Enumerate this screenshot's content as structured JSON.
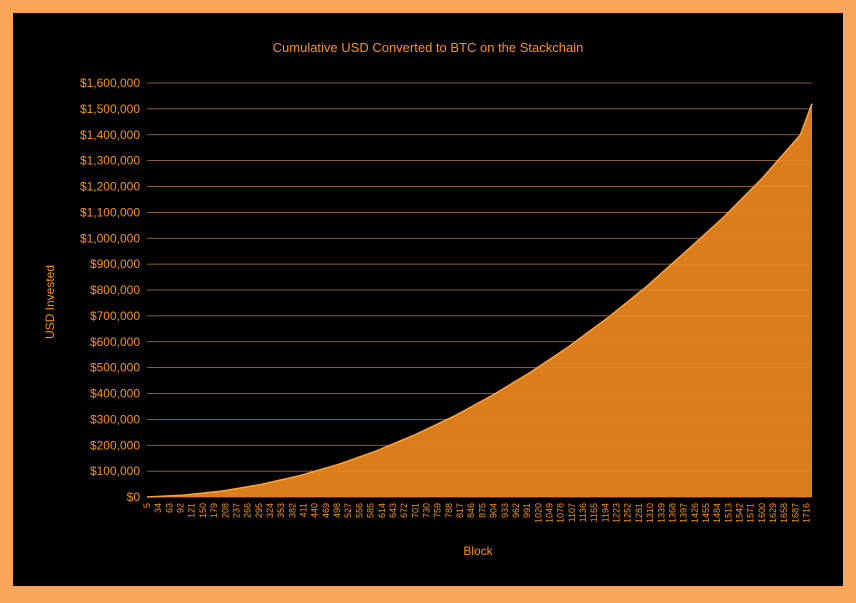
{
  "colors": {
    "page_border": "#f9a65a",
    "background": "#000000",
    "accent": "#f7931a",
    "area_fill": "#e8841f",
    "area_line": "#f7a03a",
    "text": "#f7931a",
    "grid": "#f4a460"
  },
  "chart_data": {
    "type": "area",
    "title": "Cumulative USD Converted to BTC on the Stackchain",
    "xlabel": "Block",
    "ylabel": "USD Invested",
    "x_tick_labels": [
      "5",
      "34",
      "63",
      "92",
      "121",
      "150",
      "179",
      "208",
      "237",
      "266",
      "295",
      "324",
      "353",
      "382",
      "411",
      "440",
      "469",
      "498",
      "527",
      "556",
      "585",
      "614",
      "643",
      "672",
      "701",
      "730",
      "759",
      "788",
      "817",
      "846",
      "875",
      "904",
      "933",
      "962",
      "991",
      "1020",
      "1049",
      "1078",
      "1107",
      "1136",
      "1165",
      "1194",
      "1223",
      "1252",
      "1281",
      "1310",
      "1339",
      "1368",
      "1397",
      "1426",
      "1455",
      "1484",
      "1513",
      "1542",
      "1571",
      "1600",
      "1629",
      "1658",
      "1687",
      "1716"
    ],
    "y_tick_labels": [
      "$0",
      "$100,000",
      "$200,000",
      "$300,000",
      "$400,000",
      "$500,000",
      "$600,000",
      "$700,000",
      "$800,000",
      "$900,000",
      "$1,000,000",
      "$1,100,000",
      "$1,200,000",
      "$1,300,000",
      "$1,400,000",
      "$1,500,000",
      "$1,600,000"
    ],
    "ylim": [
      0,
      1600000
    ],
    "xlim": [
      5,
      1730
    ],
    "grid": true,
    "legend": false,
    "series": [
      {
        "x": [
          5,
          100,
          200,
          300,
          400,
          500,
          600,
          700,
          800,
          900,
          1000,
          1100,
          1200,
          1300,
          1400,
          1500,
          1600,
          1700,
          1730
        ],
        "values": [
          0,
          7000,
          23000,
          48000,
          82000,
          125000,
          178000,
          240000,
          311000,
          392000,
          482000,
          582000,
          692000,
          812000,
          945000,
          1080000,
          1230000,
          1400000,
          1520000
        ]
      }
    ]
  }
}
